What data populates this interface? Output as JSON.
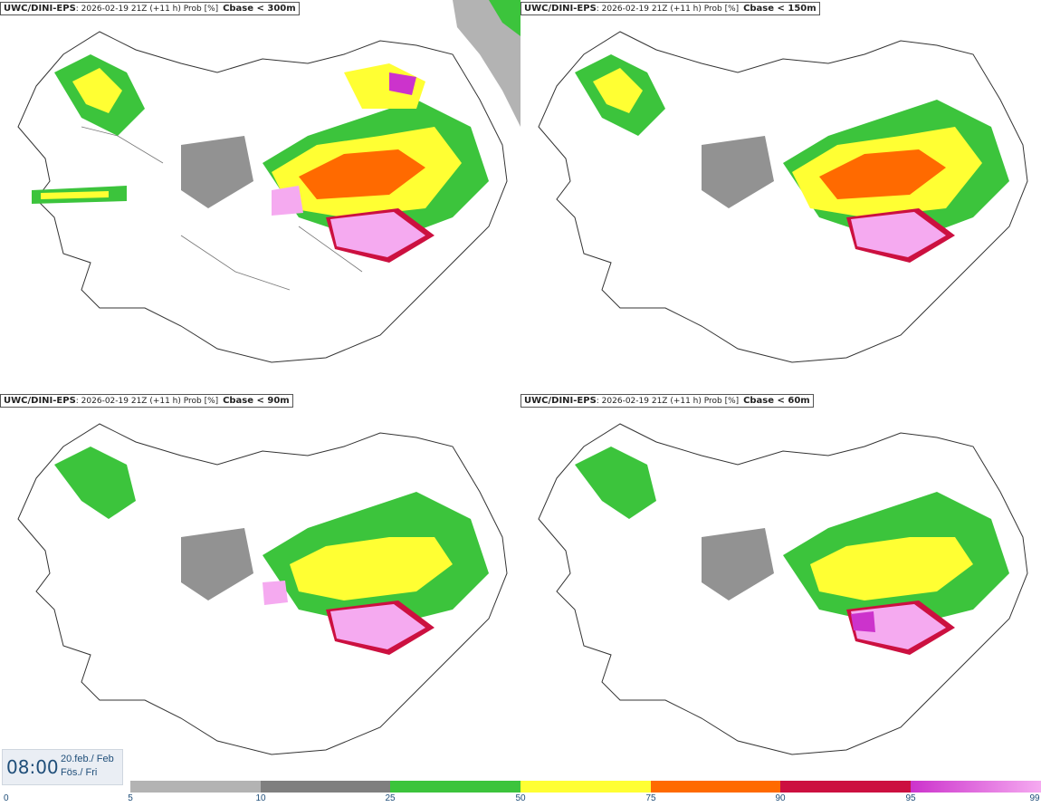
{
  "panels": [
    {
      "model": "UWC/DINI-EPS",
      "run": "2026-02-19 21Z (+11 h) Prob [%]",
      "threshold": "Cbase < 300m"
    },
    {
      "model": "UWC/DINI-EPS",
      "run": "2026-02-19 21Z (+11 h) Prob [%]",
      "threshold": "Cbase < 150m"
    },
    {
      "model": "UWC/DINI-EPS",
      "run": "2026-02-19 21Z (+11 h) Prob [%]",
      "threshold": "Cbase < 90m"
    },
    {
      "model": "UWC/DINI-EPS",
      "run": "2026-02-19 21Z (+11 h) Prob [%]",
      "threshold": "Cbase < 60m"
    }
  ],
  "valid_time": {
    "time": "08:00",
    "date_line1": "20.feb./ Feb",
    "date_line2": "Fös./ Fri"
  },
  "legend": {
    "bins": [
      {
        "from": 5,
        "to": 10,
        "color": "#b3b3b3"
      },
      {
        "from": 10,
        "to": 25,
        "color": "#7f7f7f"
      },
      {
        "from": 25,
        "to": 50,
        "color": "#3cc43c"
      },
      {
        "from": 50,
        "to": 75,
        "color": "#ffff33"
      },
      {
        "from": 75,
        "to": 90,
        "color": "#ff6a00"
      },
      {
        "from": 90,
        "to": 95,
        "color": "#cc1040"
      },
      {
        "from": 95,
        "to": 99,
        "color": "#cc33cc"
      }
    ],
    "last_color": "#f5aaf0",
    "labels": [
      "0",
      "5",
      "10",
      "25",
      "50",
      "75",
      "90",
      "95",
      "99"
    ]
  }
}
